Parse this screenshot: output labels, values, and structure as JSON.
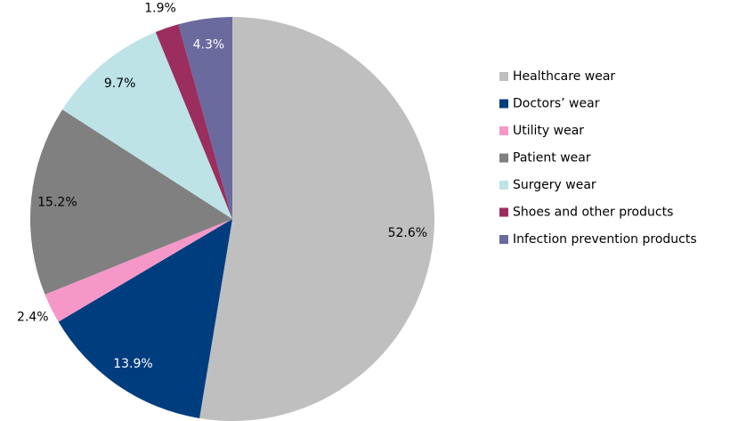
{
  "chart_data": {
    "type": "pie",
    "categories": [
      "Healthcare wear",
      "Doctors’ wear",
      "Utility wear",
      "Patient wear",
      "Surgery wear",
      "Shoes and other products",
      "Infection prevention products"
    ],
    "values": [
      52.6,
      13.9,
      2.4,
      15.2,
      9.7,
      1.9,
      4.3
    ],
    "value_labels": [
      "52.6%",
      "13.9%",
      "2.4%",
      "15.2%",
      "9.7%",
      "1.9%",
      "4.3%"
    ],
    "colors": [
      "#bfbfbf",
      "#003d7f",
      "#f598c8",
      "#808080",
      "#bde3e6",
      "#9b2e5f",
      "#6a6a9f"
    ],
    "legend": "right"
  }
}
